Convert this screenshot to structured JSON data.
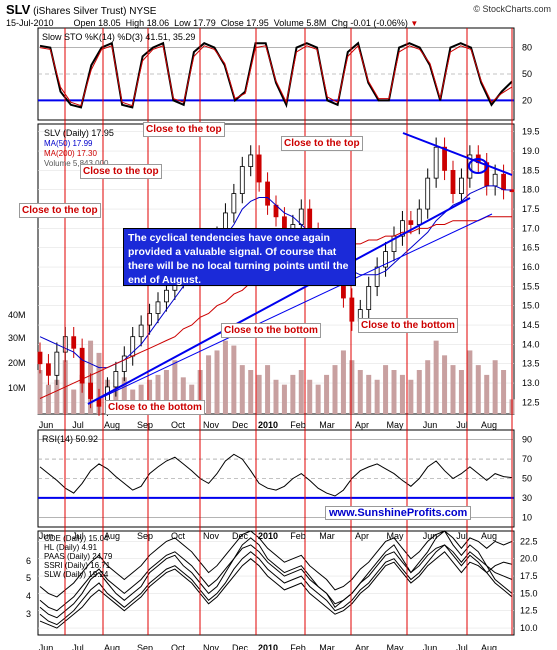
{
  "header": {
    "symbol": "SLV",
    "name": "(iShares Silver Trust)",
    "exchange": "NYSE",
    "date": "15-Jul-2010",
    "open": "Open 18.05",
    "high": "High 18.06",
    "low": "Low 17.79",
    "close": "Close 17.95",
    "volume": "Volume 5.8M",
    "chg": "Chg -0.01 (-0.06%)",
    "watermark": "© StockCharts.com"
  },
  "months": [
    "Jun",
    "Jul",
    "Aug",
    "Sep",
    "Oct",
    "Nov",
    "Dec",
    "2010",
    "Feb",
    "Mar",
    "Apr",
    "May",
    "Jun",
    "Jul",
    "Aug"
  ],
  "colors": {
    "up_candle": "#000000",
    "ma50": "#0000cc",
    "ma200": "#cc0000",
    "cycle_line": "#e00000",
    "trend_line": "#0000ee",
    "volume": "#c8a0a0",
    "annotation": "#cc0000",
    "callout_bg": "#1b2ad8"
  },
  "chart_data": [
    {
      "type": "line",
      "panel": "stochastic",
      "legend": "Slow STO %K(14) %D(3) 41.51, 35.29",
      "right_ticks": [
        "80",
        "50",
        "20"
      ],
      "ylim": [
        0,
        100
      ],
      "reference_line": 20,
      "series": [
        {
          "name": "%K",
          "values": [
            82,
            80,
            30,
            15,
            12,
            60,
            80,
            85,
            15,
            12,
            70,
            80,
            85,
            20,
            15,
            75,
            85,
            80,
            60,
            20,
            30,
            85,
            85,
            40,
            15,
            80,
            85,
            80,
            20,
            15,
            75,
            85,
            40,
            20,
            20,
            80,
            85,
            80,
            60,
            20,
            80,
            85,
            80,
            40,
            15,
            30,
            41.5
          ]
        },
        {
          "name": "%D",
          "values": [
            80,
            78,
            35,
            18,
            14,
            55,
            78,
            82,
            18,
            14,
            65,
            78,
            82,
            22,
            18,
            70,
            82,
            78,
            62,
            22,
            28,
            80,
            82,
            42,
            18,
            75,
            82,
            78,
            24,
            18,
            70,
            82,
            42,
            22,
            22,
            75,
            82,
            78,
            62,
            22,
            75,
            82,
            78,
            42,
            18,
            28,
            35.3
          ]
        }
      ]
    },
    {
      "type": "bar",
      "panel": "price",
      "legend_price": "SLV (Daily) 17.95",
      "legend_ma50": "MA(50) 17.99",
      "legend_ma200": "MA(200) 17.30",
      "legend_volume": "Volume 5,843,000",
      "right_ticks": [
        "19.5",
        "19.0",
        "18.5",
        "18.0",
        "17.5",
        "17.0",
        "16.5",
        "16.0",
        "15.5",
        "15.0",
        "14.5",
        "14.0",
        "13.5",
        "13.0",
        "12.5"
      ],
      "ylim": [
        12.2,
        19.7
      ],
      "volume_ticks": [
        "40M",
        "30M",
        "20M",
        "10M"
      ],
      "close": [
        13.5,
        13.2,
        13.8,
        14.2,
        13.9,
        13.0,
        12.6,
        12.4,
        12.9,
        13.3,
        13.7,
        14.2,
        14.5,
        14.8,
        15.1,
        15.4,
        15.7,
        16.2,
        16.5,
        16.4,
        16.3,
        16.8,
        17.4,
        17.9,
        18.6,
        18.9,
        18.2,
        17.6,
        17.3,
        16.9,
        17.1,
        17.5,
        16.9,
        16.6,
        16.3,
        15.9,
        15.2,
        14.6,
        14.9,
        15.5,
        16.0,
        16.4,
        16.8,
        17.2,
        17.1,
        17.5,
        18.3,
        19.1,
        18.5,
        17.9,
        18.3,
        18.9,
        18.7,
        18.1,
        18.4,
        18.0,
        17.95
      ],
      "ma50": [
        14.2,
        14.1,
        14.0,
        13.9,
        13.8,
        13.6,
        13.5,
        13.4,
        13.4,
        13.5,
        13.6,
        13.8,
        14.0,
        14.3,
        14.6,
        14.9,
        15.2,
        15.5,
        15.8,
        16.0,
        16.3,
        16.5,
        16.8,
        17.1,
        17.5,
        17.7,
        17.8,
        17.8,
        17.6,
        17.4,
        17.3,
        17.1,
        16.9,
        16.7,
        16.6,
        16.4,
        16.1,
        15.9,
        15.8,
        15.8,
        15.8,
        15.9,
        16.1,
        16.3,
        16.5,
        16.7,
        16.9,
        17.2,
        17.4,
        17.6,
        17.7,
        17.9,
        18.0,
        18.1,
        18.1,
        18.0,
        17.99
      ],
      "ma200": [
        12.6,
        12.7,
        12.8,
        12.9,
        13.0,
        13.1,
        13.2,
        13.3,
        13.4,
        13.5,
        13.6,
        13.7,
        13.8,
        13.9,
        14.0,
        14.1,
        14.2,
        14.4,
        14.5,
        14.7,
        14.8,
        15.0,
        15.1,
        15.3,
        15.4,
        15.6,
        15.7,
        15.8,
        15.9,
        16.0,
        16.1,
        16.2,
        16.3,
        16.4,
        16.4,
        16.5,
        16.5,
        16.6,
        16.6,
        16.7,
        16.7,
        16.8,
        16.8,
        16.9,
        16.9,
        17.0,
        17.0,
        17.1,
        17.1,
        17.2,
        17.2,
        17.2,
        17.2,
        17.3,
        17.3,
        17.3,
        17.3
      ],
      "volume": [
        18,
        12,
        14,
        22,
        10,
        16,
        30,
        25,
        14,
        12,
        15,
        10,
        12,
        14,
        16,
        18,
        22,
        15,
        12,
        18,
        24,
        26,
        30,
        28,
        20,
        18,
        16,
        20,
        14,
        12,
        16,
        18,
        14,
        12,
        16,
        20,
        26,
        22,
        18,
        16,
        14,
        20,
        18,
        16,
        14,
        18,
        22,
        30,
        24,
        20,
        18,
        26,
        20,
        16,
        22,
        18,
        6
      ],
      "cycle_marker_months": [
        "Jun",
        "Jul",
        "Aug",
        "Sep",
        "Oct",
        "Nov",
        "Dec",
        "2010",
        "Feb",
        "Mar",
        "Apr",
        "May",
        "Jun",
        "Jul",
        "Aug"
      ],
      "annotations": [
        "Close to the top",
        "Close to the top",
        "Close to the top",
        "Close to the top",
        "Close to the bottom",
        "Close to the bottom",
        "Close to the bottom"
      ],
      "callout": "The cyclical tendencies have once again provided a valuable signal. Of course that there will be no local turning points until the end of August."
    },
    {
      "type": "line",
      "panel": "rsi",
      "legend": "RSI(14) 50.92",
      "right_ticks": [
        "90",
        "70",
        "50",
        "30",
        "10"
      ],
      "ylim": [
        0,
        100
      ],
      "reference_line": 30,
      "watermark": "www.SunshineProfits.com",
      "values": [
        62,
        55,
        48,
        40,
        35,
        45,
        58,
        65,
        60,
        52,
        45,
        38,
        42,
        55,
        62,
        68,
        72,
        65,
        58,
        50,
        45,
        55,
        68,
        75,
        70,
        58,
        45,
        40,
        38,
        42,
        50,
        55,
        48,
        40,
        35,
        32,
        38,
        50,
        58,
        62,
        65,
        60,
        55,
        48,
        42,
        50,
        62,
        68,
        58,
        50,
        55,
        62,
        55,
        48,
        55,
        52,
        50.92
      ]
    },
    {
      "type": "line",
      "panel": "comparison",
      "left_ticks": [
        "6",
        "5",
        "4",
        "3"
      ],
      "right_ticks": [
        "22.5",
        "20.0",
        "17.5",
        "15.0",
        "12.5",
        "10.0"
      ],
      "ylim": [
        9,
        24
      ],
      "series": [
        {
          "name": "CDE (Daily) 15.04",
          "values": [
            13,
            12,
            11.5,
            12.5,
            13.5,
            15,
            17,
            18,
            16.5,
            15,
            14,
            15,
            16,
            18,
            19,
            20,
            20.5,
            19,
            18,
            16.5,
            15,
            16,
            18,
            20,
            22,
            23,
            22,
            20,
            19,
            18,
            18.5,
            19,
            17.5,
            16,
            15,
            13,
            14,
            15,
            16.5,
            18,
            19.5,
            21,
            22,
            20,
            18,
            19.5,
            21,
            23,
            24,
            22,
            20.5,
            22,
            21,
            19,
            17,
            16,
            15
          ]
        },
        {
          "name": "HL (Daily) 4.91",
          "values": [
            12,
            11,
            10.5,
            11.5,
            12.5,
            14,
            15.5,
            16.5,
            15,
            14,
            13,
            14,
            15,
            16.5,
            17.5,
            18.5,
            19,
            18,
            17,
            15.5,
            14,
            15,
            16.5,
            18.5,
            20,
            21,
            20,
            18.5,
            17.5,
            16.5,
            17,
            17.5,
            16,
            15,
            14,
            12.5,
            13,
            14,
            15.5,
            16.5,
            18,
            19.5,
            20,
            18.5,
            17,
            18,
            19.5,
            21,
            22,
            20.5,
            19,
            20.5,
            19.5,
            18,
            16.5,
            15.5,
            14.5
          ]
        },
        {
          "name": "PAAS (Daily) 24.79",
          "values": [
            16,
            15,
            14.5,
            15.5,
            16.5,
            18,
            19.5,
            20.5,
            19,
            18,
            17,
            18,
            19,
            20.5,
            21.5,
            22.5,
            23,
            22,
            21,
            19.5,
            18,
            19,
            20.5,
            22,
            23.5,
            24,
            23,
            21.5,
            20.5,
            19.5,
            20,
            20.5,
            19,
            18,
            17,
            15.5,
            16,
            17,
            18.5,
            19.5,
            21,
            22.5,
            23,
            21.5,
            20,
            21,
            22.5,
            23.5,
            24,
            23,
            21.5,
            23,
            22.5,
            21.5,
            22.5,
            22,
            22.5
          ]
        },
        {
          "name": "SSRI (Daily) 16.71",
          "values": [
            14,
            13,
            12.5,
            13.5,
            14.5,
            16,
            17.5,
            18.5,
            17,
            16,
            15,
            16,
            17,
            18.5,
            19.5,
            20.5,
            21,
            20,
            19,
            17.5,
            16,
            17,
            18.5,
            20,
            21.5,
            22,
            21,
            19.5,
            18.5,
            17.5,
            18,
            18.5,
            17,
            16,
            15,
            13.5,
            14,
            15,
            16.5,
            17.5,
            19,
            20.5,
            21,
            19.5,
            18,
            19,
            20.5,
            21.5,
            22,
            21,
            19.5,
            21,
            20,
            19,
            18,
            17.5,
            17
          ]
        },
        {
          "name": "SLW (Daily) 19.24",
          "values": [
            11,
            10.5,
            10,
            11,
            12,
            13,
            14.5,
            15.5,
            14.5,
            13.5,
            12.5,
            13.5,
            14.5,
            16,
            17,
            18,
            18.5,
            17.5,
            16.5,
            15,
            13.5,
            14.5,
            16,
            17.5,
            19,
            20,
            19,
            17.5,
            16.5,
            15.5,
            16,
            16.5,
            15,
            14,
            13,
            12,
            12.5,
            13.5,
            15,
            16,
            17.5,
            19,
            19.5,
            18,
            16.5,
            17.5,
            19,
            20,
            21,
            19.5,
            18,
            19.5,
            19,
            18,
            19,
            19.5,
            19.2
          ]
        }
      ]
    }
  ]
}
